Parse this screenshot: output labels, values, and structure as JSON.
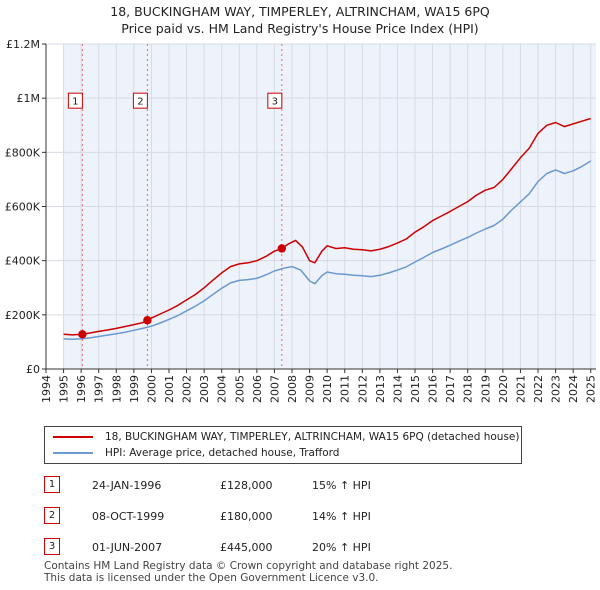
{
  "header": {
    "title": "18, BUCKINGHAM WAY, TIMPERLEY, ALTRINCHAM, WA15 6PQ",
    "subtitle": "Price paid vs. HM Land Registry's House Price Index (HPI)"
  },
  "chart_data": {
    "type": "line",
    "title": "18, BUCKINGHAM WAY, TIMPERLEY, ALTRINCHAM, WA15 6PQ",
    "subtitle": "Price paid vs. HM Land Registry's House Price Index (HPI)",
    "xlim": [
      1994,
      2025.3
    ],
    "ylim": [
      0,
      1200000
    ],
    "x_ticks": [
      1994,
      1995,
      1996,
      1997,
      1998,
      1999,
      2000,
      2001,
      2002,
      2003,
      2004,
      2005,
      2006,
      2007,
      2008,
      2009,
      2010,
      2011,
      2012,
      2013,
      2014,
      2015,
      2016,
      2017,
      2018,
      2019,
      2020,
      2021,
      2022,
      2023,
      2024,
      2025
    ],
    "x_tick_labels": [
      "1994",
      "1995",
      "1996",
      "1997",
      "1998",
      "1999",
      "2000",
      "2001",
      "2002",
      "2003",
      "2004",
      "2005",
      "2006",
      "2007",
      "2008",
      "2009",
      "2010",
      "2011",
      "2012",
      "2013",
      "2014",
      "2015",
      "2016",
      "2017",
      "2018",
      "2019",
      "2020",
      "2021",
      "2022",
      "2023",
      "2024",
      "2025"
    ],
    "y_ticks": [
      0,
      200000,
      400000,
      600000,
      800000,
      1000000,
      1200000
    ],
    "y_tick_labels": [
      "£0",
      "£200K",
      "£400K",
      "£600K",
      "£800K",
      "£1M",
      "£1.2M"
    ],
    "grid": true,
    "shaded_region": [
      1995.0,
      2025.3
    ],
    "series": [
      {
        "name": "18, BUCKINGHAM WAY, TIMPERLEY, ALTRINCHAM, WA15 6PQ (detached house)",
        "color": "#cc0000",
        "x": [
          1995.0,
          1995.5,
          1996.07,
          1996.5,
          1997.0,
          1997.5,
          1998.0,
          1998.5,
          1999.0,
          1999.5,
          1999.77,
          2000.0,
          2000.5,
          2001.0,
          2001.5,
          2002.0,
          2002.5,
          2003.0,
          2003.5,
          2004.0,
          2004.5,
          2005.0,
          2005.5,
          2006.0,
          2006.5,
          2007.0,
          2007.42,
          2007.8,
          2008.2,
          2008.6,
          2009.0,
          2009.3,
          2009.7,
          2010.0,
          2010.5,
          2011.0,
          2011.5,
          2012.0,
          2012.5,
          2013.0,
          2013.5,
          2014.0,
          2014.5,
          2015.0,
          2015.5,
          2016.0,
          2016.5,
          2017.0,
          2017.5,
          2018.0,
          2018.5,
          2019.0,
          2019.5,
          2020.0,
          2020.5,
          2021.0,
          2021.5,
          2022.0,
          2022.5,
          2023.0,
          2023.5,
          2024.0,
          2024.5,
          2025.0
        ],
        "values": [
          128000,
          126000,
          128000,
          133000,
          139000,
          144000,
          150000,
          157000,
          164000,
          171000,
          180000,
          188000,
          203000,
          218000,
          235000,
          255000,
          275000,
          300000,
          328000,
          355000,
          378000,
          388000,
          392000,
          400000,
          415000,
          435000,
          445000,
          462000,
          475000,
          450000,
          400000,
          392000,
          435000,
          455000,
          445000,
          448000,
          442000,
          440000,
          436000,
          442000,
          452000,
          465000,
          480000,
          505000,
          525000,
          548000,
          565000,
          582000,
          600000,
          618000,
          642000,
          660000,
          670000,
          700000,
          740000,
          780000,
          815000,
          870000,
          900000,
          910000,
          895000,
          905000,
          915000,
          925000
        ]
      },
      {
        "name": "HPI: Average price, detached house, Trafford",
        "color": "#6a99d0",
        "x": [
          1995.0,
          1995.5,
          1996.0,
          1996.5,
          1997.0,
          1997.5,
          1998.0,
          1998.5,
          1999.0,
          1999.5,
          2000.0,
          2000.5,
          2001.0,
          2001.5,
          2002.0,
          2002.5,
          2003.0,
          2003.5,
          2004.0,
          2004.5,
          2005.0,
          2005.5,
          2006.0,
          2006.5,
          2007.0,
          2007.5,
          2008.0,
          2008.5,
          2009.0,
          2009.3,
          2009.7,
          2010.0,
          2010.5,
          2011.0,
          2011.5,
          2012.0,
          2012.5,
          2013.0,
          2013.5,
          2014.0,
          2014.5,
          2015.0,
          2015.5,
          2016.0,
          2016.5,
          2017.0,
          2017.5,
          2018.0,
          2018.5,
          2019.0,
          2019.5,
          2020.0,
          2020.5,
          2021.0,
          2021.5,
          2022.0,
          2022.5,
          2023.0,
          2023.5,
          2024.0,
          2024.5,
          2025.0
        ],
        "values": [
          111000,
          110000,
          111000,
          115000,
          120000,
          125000,
          130000,
          136000,
          143000,
          150000,
          158000,
          170000,
          183000,
          197000,
          215000,
          232000,
          252000,
          275000,
          298000,
          318000,
          327000,
          330000,
          335000,
          347000,
          362000,
          372000,
          378000,
          365000,
          325000,
          315000,
          345000,
          358000,
          352000,
          350000,
          346000,
          344000,
          341000,
          346000,
          355000,
          365000,
          377000,
          395000,
          412000,
          430000,
          443000,
          457000,
          472000,
          486000,
          502000,
          517000,
          530000,
          553000,
          587000,
          617000,
          647000,
          692000,
          722000,
          735000,
          722000,
          732000,
          748000,
          768000
        ]
      }
    ],
    "sales": [
      {
        "label": "1",
        "x": 1996.07,
        "value": 128000
      },
      {
        "label": "2",
        "x": 1999.77,
        "value": 180000
      },
      {
        "label": "3",
        "x": 2007.42,
        "value": 445000
      }
    ]
  },
  "legend": {
    "property_label": "18, BUCKINGHAM WAY, TIMPERLEY, ALTRINCHAM, WA15 6PQ (detached house)",
    "hpi_label": "HPI: Average price, detached house, Trafford"
  },
  "transactions": [
    {
      "num": "1",
      "date": "24-JAN-1996",
      "price": "£128,000",
      "hpi": "15% ↑ HPI"
    },
    {
      "num": "2",
      "date": "08-OCT-1999",
      "price": "£180,000",
      "hpi": "14% ↑ HPI"
    },
    {
      "num": "3",
      "date": "01-JUN-2007",
      "price": "£445,000",
      "hpi": "20% ↑ HPI"
    }
  ],
  "footer": {
    "line1": "Contains HM Land Registry data © Crown copyright and database right 2025.",
    "line2": "This data is licensed under the Open Government Licence v3.0."
  }
}
